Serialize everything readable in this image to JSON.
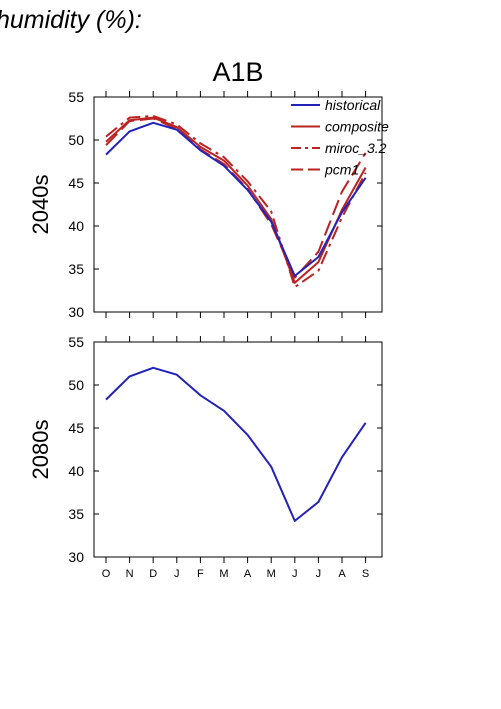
{
  "figure": {
    "heading": "humidity (%):"
  },
  "colors": {
    "historical": "#2222bb",
    "model": "#bb2222"
  },
  "chart_data": [
    {
      "type": "line",
      "title": "A1B",
      "ylabel": "2040s",
      "ylim": [
        30,
        55
      ],
      "yticks": [
        30,
        35,
        40,
        45,
        50,
        55
      ],
      "categories": [
        "O",
        "N",
        "D",
        "J",
        "F",
        "M",
        "A",
        "M",
        "J",
        "J",
        "A",
        "S"
      ],
      "legend_position": "top-right",
      "series": [
        {
          "name": "historical",
          "style": "solid",
          "color": "#2222bb",
          "values": [
            48.3,
            51.0,
            52.0,
            51.2,
            48.8,
            47.0,
            44.2,
            40.5,
            34.2,
            36.4,
            41.6,
            45.6
          ]
        },
        {
          "name": "composite",
          "style": "solid",
          "color": "#bb2222",
          "values": [
            49.8,
            52.3,
            52.6,
            51.5,
            49.2,
            47.6,
            44.7,
            40.8,
            33.4,
            35.8,
            41.9,
            46.8
          ]
        },
        {
          "name": "miroc_3.2",
          "style": "dashdot",
          "color": "#bb2222",
          "values": [
            50.4,
            52.6,
            52.8,
            51.8,
            49.6,
            48.0,
            45.2,
            41.7,
            32.9,
            34.8,
            41.0,
            46.2
          ]
        },
        {
          "name": "pcm1",
          "style": "dashed",
          "color": "#bb2222",
          "values": [
            49.4,
            52.2,
            52.5,
            51.3,
            48.9,
            47.2,
            44.3,
            40.2,
            34.0,
            37.0,
            44.0,
            48.5
          ]
        }
      ]
    },
    {
      "type": "line",
      "title": "",
      "ylabel": "2080s",
      "ylim": [
        30,
        55
      ],
      "yticks": [
        30,
        35,
        40,
        45,
        50,
        55
      ],
      "categories": [
        "O",
        "N",
        "D",
        "J",
        "F",
        "M",
        "A",
        "M",
        "J",
        "J",
        "A",
        "S"
      ],
      "series": [
        {
          "name": "historical",
          "style": "solid",
          "color": "#2222bb",
          "values": [
            48.3,
            51.0,
            52.0,
            51.2,
            48.8,
            47.0,
            44.2,
            40.5,
            34.2,
            36.4,
            41.6,
            45.6
          ]
        }
      ]
    }
  ]
}
